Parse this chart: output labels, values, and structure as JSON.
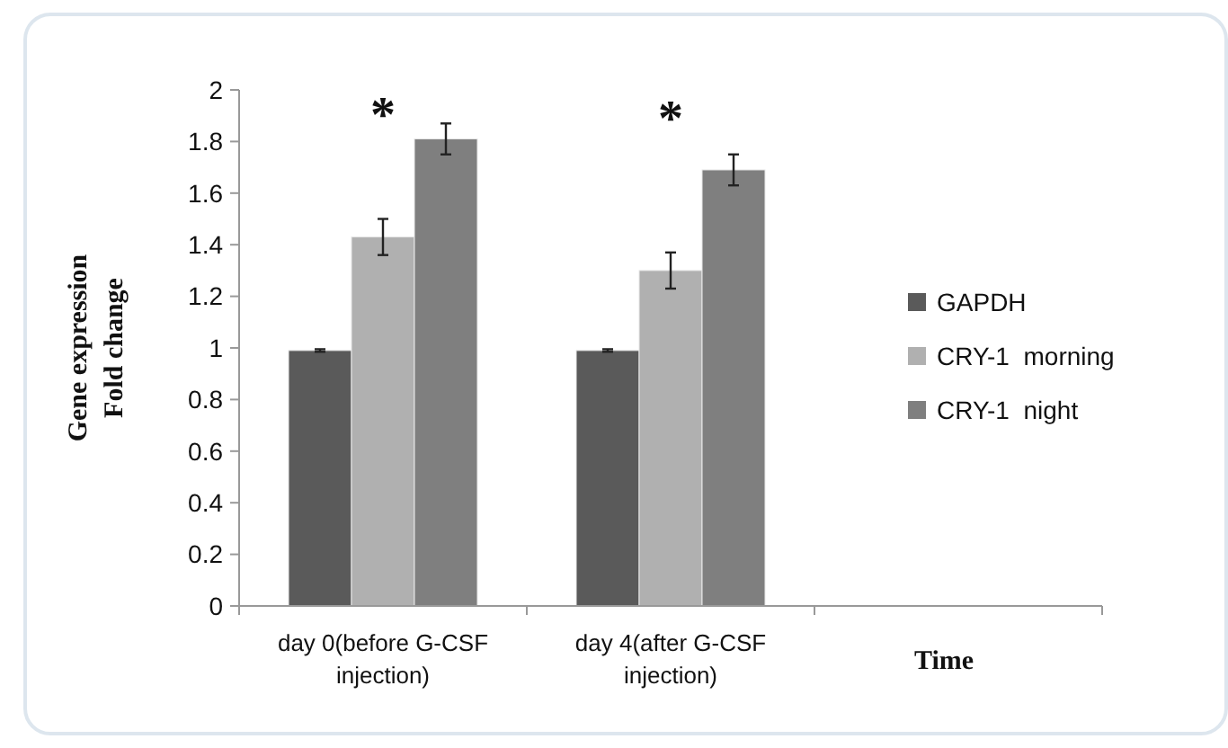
{
  "chart_data": {
    "type": "bar",
    "xlabel": "Time",
    "ylabel": "Gene expression\nFold change",
    "categories": [
      "day 0(before G-CSF injection)",
      "day 4(after G-CSF injection)",
      null
    ],
    "series": [
      {
        "name": "GAPDH",
        "color": "#5a5a5a",
        "values": [
          0.99,
          0.99,
          null
        ],
        "errors": [
          0.005,
          0.005,
          null
        ]
      },
      {
        "name": "CRY-1  morning",
        "color": "#b0b0b0",
        "values": [
          1.43,
          1.3,
          null
        ],
        "errors": [
          0.07,
          0.07,
          null
        ]
      },
      {
        "name": "CRY-1  night",
        "color": "#7f7f7f",
        "values": [
          1.81,
          1.69,
          null
        ],
        "errors": [
          0.06,
          0.06,
          null
        ]
      }
    ],
    "ylim": [
      0,
      2
    ],
    "yticks": [
      0,
      0.2,
      0.4,
      0.6,
      0.8,
      1,
      1.2,
      1.4,
      1.6,
      1.8,
      2
    ],
    "grid": false,
    "legend": "right",
    "annotations": [
      "*",
      "*"
    ]
  }
}
